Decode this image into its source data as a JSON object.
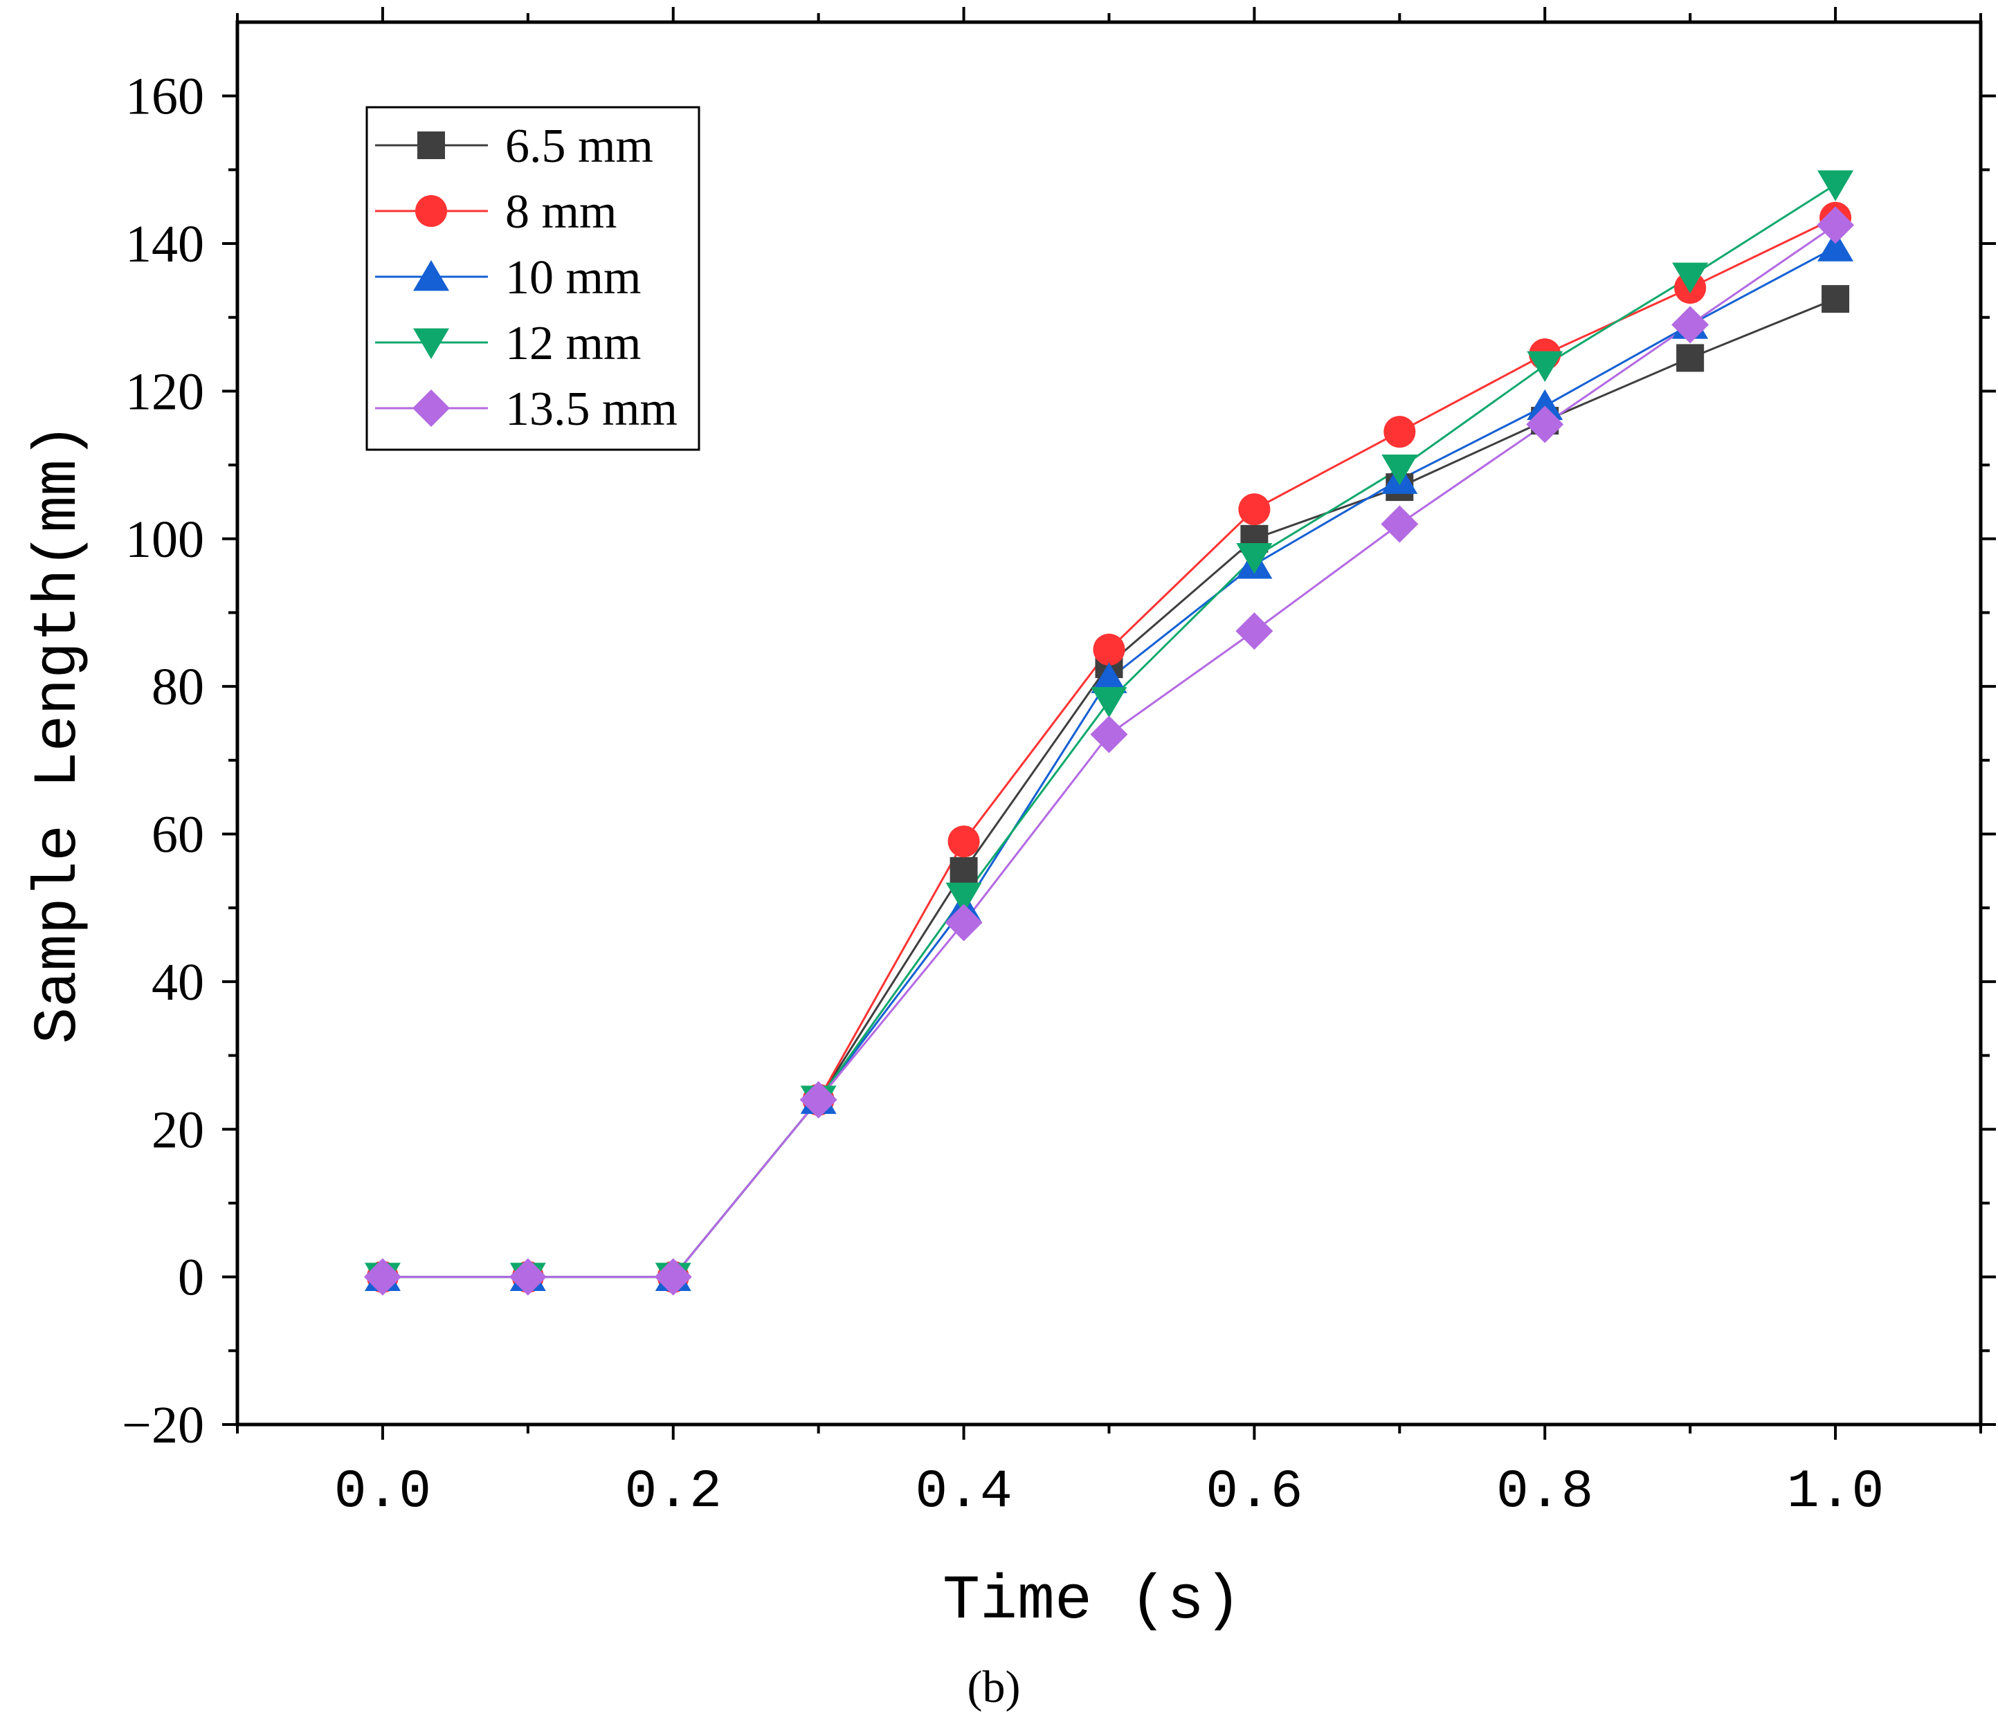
{
  "chart_data": {
    "type": "line",
    "title": "",
    "xlabel": "Time (s)",
    "ylabel": "Sample Length(mm)",
    "caption": "(b)",
    "xlim": [
      -0.1,
      1.1
    ],
    "ylim": [
      -20,
      170
    ],
    "xticks": [
      0.0,
      0.2,
      0.4,
      0.6,
      0.8,
      1.0
    ],
    "xtick_labels": [
      "0.0",
      "0.2",
      "0.4",
      "0.6",
      "0.8",
      "1.0"
    ],
    "yticks": [
      -20,
      0,
      20,
      40,
      60,
      80,
      100,
      120,
      140,
      160
    ],
    "ytick_labels": [
      "−20",
      "0",
      "20",
      "40",
      "60",
      "80",
      "100",
      "120",
      "140",
      "160"
    ],
    "grid": false,
    "legend_position": "top-left",
    "x": [
      0.0,
      0.1,
      0.2,
      0.3,
      0.4,
      0.5,
      0.6,
      0.7,
      0.8,
      0.9,
      1.0
    ],
    "series": [
      {
        "name": "6.5 mm",
        "marker": "square",
        "color": "#3f3f3f",
        "values": [
          0,
          0,
          0,
          24,
          55,
          83,
          100,
          107,
          116,
          124.5,
          132.5
        ]
      },
      {
        "name": "8 mm",
        "marker": "circle",
        "color": "#ff3333",
        "values": [
          0,
          0,
          0,
          24,
          59,
          85,
          104,
          114.5,
          125,
          134,
          143.5
        ]
      },
      {
        "name": "10 mm",
        "marker": "triangle-up",
        "color": "#1560d4",
        "values": [
          0,
          0,
          0,
          24,
          50,
          81,
          96.5,
          108,
          118,
          129,
          139.5
        ]
      },
      {
        "name": "12 mm",
        "marker": "triangle-down",
        "color": "#0fa86c",
        "values": [
          0,
          0,
          0,
          24,
          51.5,
          78,
          97.5,
          109.5,
          123.5,
          135.5,
          148
        ]
      },
      {
        "name": "13.5 mm",
        "marker": "diamond",
        "color": "#b36ae2",
        "values": [
          0,
          0,
          0,
          24,
          48,
          73.5,
          87.5,
          102,
          115.5,
          129,
          142.5
        ]
      }
    ]
  }
}
